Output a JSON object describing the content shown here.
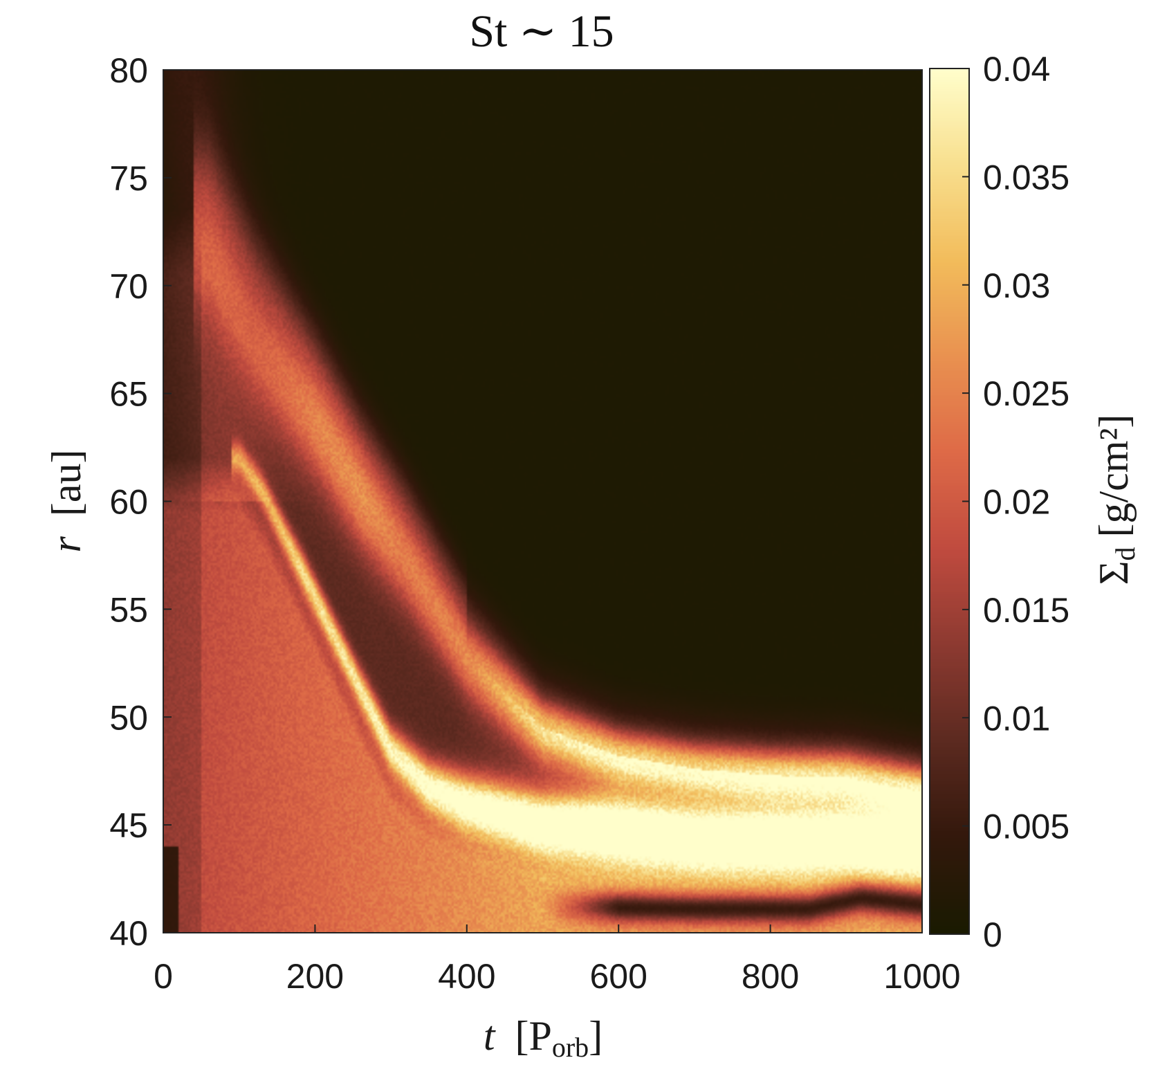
{
  "chart_data": {
    "type": "heatmap",
    "title": "St ∼ 15",
    "xlabel": {
      "var": "t",
      "unit_main": "P",
      "unit_sub": "orb"
    },
    "ylabel": {
      "var": "r",
      "unit": "au"
    },
    "colorbar_label": {
      "main": "Σ",
      "sub": "d",
      "unit": "g/cm²"
    },
    "xlim": [
      0,
      1000
    ],
    "ylim": [
      40,
      80
    ],
    "clim": [
      0,
      0.04
    ],
    "x_ticks": [
      "0",
      "200",
      "400",
      "600",
      "800",
      "1000"
    ],
    "x_tick_values": [
      0,
      200,
      400,
      600,
      800,
      1000
    ],
    "y_ticks": [
      "40",
      "45",
      "50",
      "55",
      "60",
      "65",
      "70",
      "75",
      "80"
    ],
    "y_tick_values": [
      40,
      45,
      50,
      55,
      60,
      65,
      70,
      75,
      80
    ],
    "colorbar_ticks": [
      "0",
      "0.005",
      "0.01",
      "0.015",
      "0.02",
      "0.025",
      "0.03",
      "0.035",
      "0.04"
    ],
    "colorbar_tick_values": [
      0,
      0.005,
      0.01,
      0.015,
      0.02,
      0.025,
      0.03,
      0.035,
      0.04
    ],
    "colormap": "lajolla",
    "colormap_stops": [
      "#1a1a01",
      "#33180c",
      "#5c2a20",
      "#8d3a31",
      "#c04b3f",
      "#de6a47",
      "#e99150",
      "#f2bc5b",
      "#f8df8e",
      "#fffecb"
    ],
    "background_value": 0.0008,
    "features": [
      {
        "name": "outer dust ring",
        "track_t": [
          60,
          120,
          200,
          260,
          320,
          400,
          500,
          600,
          700,
          800,
          900,
          1000
        ],
        "track_r": [
          72,
          68,
          64,
          60.5,
          57.5,
          53,
          49.5,
          48.2,
          47.6,
          47.3,
          47.2,
          46.5
        ],
        "width_au": [
          2.5,
          2.5,
          2.0,
          1.8,
          1.6,
          1.3,
          1.0,
          0.9,
          0.9,
          0.9,
          0.9,
          0.9
        ],
        "peak": [
          0.009,
          0.011,
          0.018,
          0.02,
          0.018,
          0.02,
          0.028,
          0.03,
          0.03,
          0.032,
          0.032,
          0.034
        ]
      },
      {
        "name": "inner dust ring",
        "track_t": [
          100,
          130,
          180,
          250,
          300,
          350,
          400,
          500,
          600,
          700,
          800,
          900,
          1000
        ],
        "track_r": [
          62,
          60.5,
          57,
          52,
          48.5,
          46.8,
          46,
          45,
          44.7,
          44.3,
          44.2,
          44.2,
          44
        ],
        "width_au": [
          0.5,
          0.5,
          0.6,
          0.6,
          0.7,
          0.8,
          0.9,
          1.0,
          1.1,
          1.1,
          1.1,
          1.1,
          1.1
        ],
        "peak": [
          0.016,
          0.02,
          0.026,
          0.028,
          0.03,
          0.033,
          0.036,
          0.038,
          0.04,
          0.04,
          0.04,
          0.04,
          0.04
        ]
      }
    ],
    "depleted_gap": {
      "track_t": [
        550,
        700,
        850,
        920,
        1000
      ],
      "track_r": [
        41.2,
        41.1,
        41.1,
        41.6,
        41.3
      ],
      "width_au": 0.5,
      "value": 0.005
    }
  }
}
